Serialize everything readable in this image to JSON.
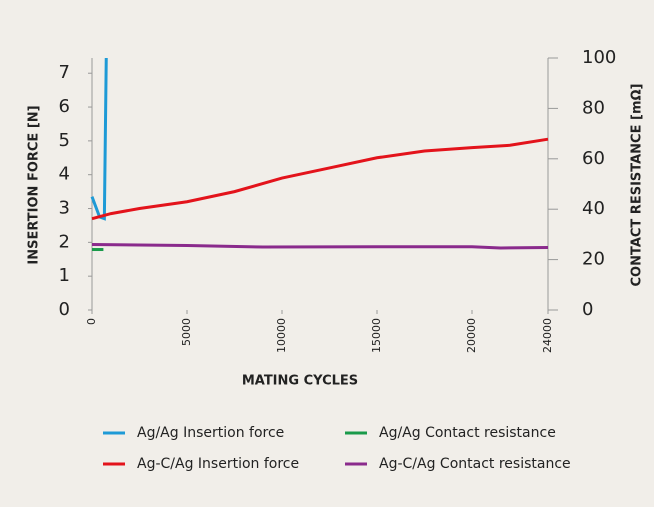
{
  "chart_data": {
    "type": "line",
    "xlabel": "MATING CYCLES",
    "ylabel": "INSERTION FORCE [N]",
    "y2label": "CONTACT RESISTANCE [mΩ]",
    "xlim": [
      0,
      24000
    ],
    "xticks": [
      0,
      5000,
      10000,
      15000,
      20000,
      24000
    ],
    "ylim": [
      0,
      7.45
    ],
    "yticks": [
      0,
      1,
      2,
      3,
      4,
      5,
      6,
      7
    ],
    "y2lim": [
      0,
      100
    ],
    "y2ticks": [
      0,
      20,
      40,
      60,
      80,
      100
    ],
    "grid": false,
    "legend": "bottom",
    "series": [
      {
        "name": "Ag/Ag Insertion force",
        "color": "#1e9ad6",
        "axis": "y",
        "x": [
          0,
          400,
          650,
          750
        ],
        "values": [
          3.35,
          2.75,
          2.7,
          7.45
        ]
      },
      {
        "name": "Ag/Ag Contact resistance",
        "color": "#1a9a4a",
        "axis": "y2",
        "x": [
          0,
          600
        ],
        "values": [
          24,
          24
        ]
      },
      {
        "name": "Ag-C/Ag Insertion force",
        "color": "#e3131b",
        "axis": "y",
        "x": [
          0,
          1000,
          2500,
          5000,
          7500,
          10000,
          12500,
          15000,
          17500,
          20000,
          22000,
          24000
        ],
        "values": [
          2.7,
          2.85,
          3.0,
          3.2,
          3.5,
          3.9,
          4.2,
          4.5,
          4.7,
          4.8,
          4.87,
          5.05
        ]
      },
      {
        "name": "Ag-C/Ag Contact resistance",
        "color": "#8a2a8c",
        "axis": "y2",
        "x": [
          0,
          5000,
          9000,
          15000,
          20000,
          21500,
          24000
        ],
        "values": [
          26,
          25.6,
          25,
          25.1,
          25.1,
          24.6,
          24.8
        ]
      }
    ]
  }
}
